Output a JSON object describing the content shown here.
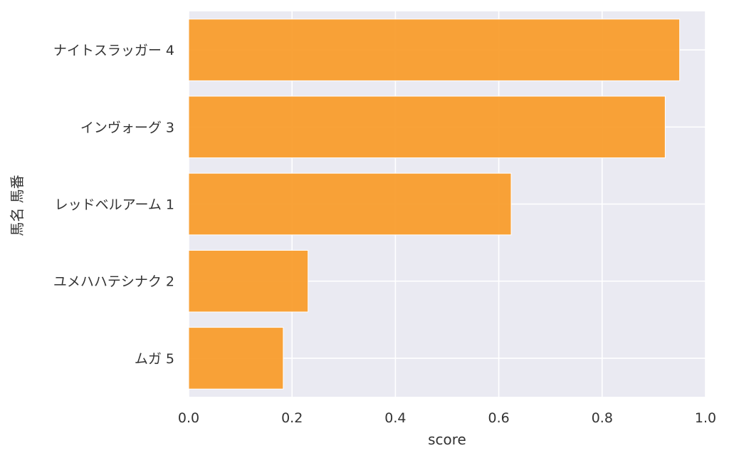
{
  "chart_data": {
    "type": "bar",
    "orientation": "horizontal",
    "title": "",
    "xlabel": "score",
    "ylabel": "馬名 馬番",
    "xlim": [
      0.0,
      1.0
    ],
    "x_ticks": [
      "0.0",
      "0.2",
      "0.4",
      "0.6",
      "0.8",
      "1.0"
    ],
    "categories": [
      "ナイトスラッガー 4",
      "インヴォーグ 3",
      "レッドベルアーム 1",
      "ユメハハテシナク 2",
      "ムガ 5"
    ],
    "values": [
      0.95,
      0.922,
      0.624,
      0.231,
      0.183
    ],
    "grid": true,
    "colors": {
      "bar": "#f99a27",
      "bar_edge": "#ffffff",
      "plot_background": "#eaeaf2",
      "grid": "#ffffff",
      "text": "#333333"
    }
  }
}
